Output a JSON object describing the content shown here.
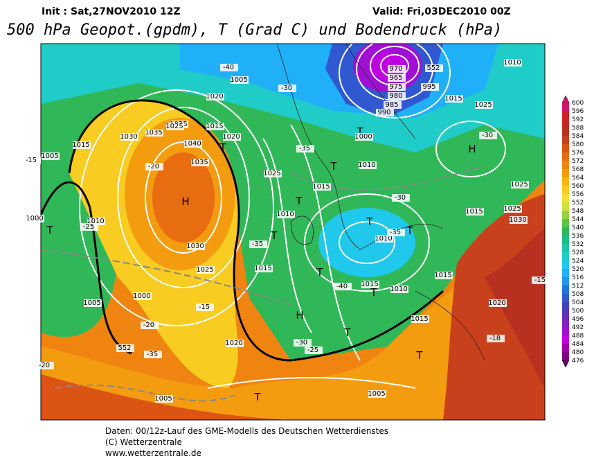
{
  "header": {
    "init": "Init : Sat,27NOV2010 12Z",
    "valid": "Valid: Fri,03DEC2010 00Z",
    "title": "500 hPa Geopot.(gpdm), T (Grad C) und Bodendruck (hPa)"
  },
  "colorbar": {
    "levels": [
      600,
      596,
      592,
      588,
      584,
      580,
      576,
      572,
      568,
      564,
      560,
      556,
      552,
      548,
      544,
      540,
      536,
      532,
      528,
      524,
      520,
      516,
      512,
      508,
      504,
      500,
      496,
      492,
      488,
      484,
      480,
      476
    ],
    "colors": [
      "#d0146e",
      "#d0202a",
      "#c42a24",
      "#b83020",
      "#c8401c",
      "#dc5414",
      "#e86c10",
      "#f08410",
      "#f49c10",
      "#f8b418",
      "#f8cc20",
      "#f0e038",
      "#d0e040",
      "#98d040",
      "#60c448",
      "#30b858",
      "#20bc88",
      "#20c4ac",
      "#20ccc8",
      "#20c8ec",
      "#20b0f8",
      "#2094f0",
      "#2074e0",
      "#3058d0",
      "#4440c4",
      "#6030b8",
      "#8020c4",
      "#a010d4",
      "#c000e0",
      "#a000a8",
      "#800088",
      "#600060"
    ]
  },
  "map": {
    "labels": [
      "H",
      "H",
      "H",
      "T",
      "T",
      "T",
      "T",
      "T",
      "T",
      "T",
      "T",
      "T",
      "T",
      "T",
      "T",
      "T",
      "1005",
      "1005",
      "1015",
      "1020",
      "1025",
      "1030",
      "1035",
      "1040",
      "1035",
      "1030",
      "1025",
      "1010",
      "1000",
      "1000",
      "1005",
      "1015",
      "1020",
      "1015",
      "1010",
      "1010",
      "1000",
      "1025",
      "1015",
      "1010",
      "1015",
      "1010",
      "1015",
      "1020",
      "1025",
      "1030",
      "1025",
      "1015",
      "1025",
      "1015",
      "1005",
      "1010",
      "970",
      "965",
      "975",
      "980",
      "985",
      "990",
      "995",
      "1015",
      "1020",
      "1025",
      "1005",
      "-20",
      "-25",
      "-15",
      "-20",
      "-30",
      "-35",
      "-35",
      "-30",
      "-35",
      "-25",
      "-15",
      "-18",
      "-30",
      "-15",
      "-20",
      "-35",
      "-40",
      "-40",
      "-30",
      "552",
      "552"
    ]
  },
  "footer": {
    "line1": "Daten: 00/12z-Lauf des GME-Modells des Deutschen Wetterdienstes",
    "line2": "(C) Wetterzentrale",
    "line3": "www.wetterzentrale.de"
  }
}
